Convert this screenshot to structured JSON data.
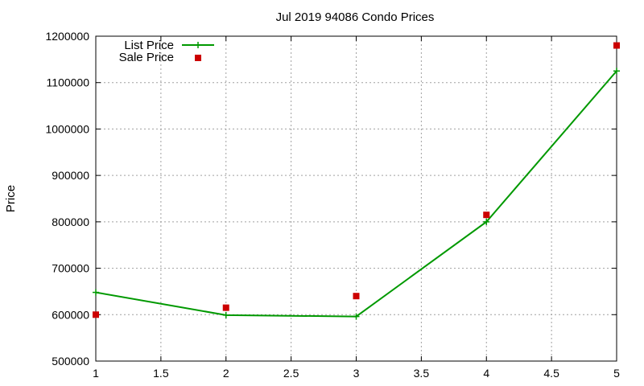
{
  "chart_data": {
    "type": "line",
    "title": "Jul 2019 94086 Condo Prices",
    "xlabel": "",
    "ylabel": "Price",
    "xlim": [
      1,
      5
    ],
    "ylim": [
      500000,
      1200000
    ],
    "x_ticks": [
      "1",
      "1.5",
      "2",
      "2.5",
      "3",
      "3.5",
      "4",
      "4.5",
      "5"
    ],
    "y_ticks": [
      "500000",
      "600000",
      "700000",
      "800000",
      "900000",
      "1000000",
      "1100000",
      "1200000"
    ],
    "grid": true,
    "legend_position": "top-left",
    "series": [
      {
        "name": "List Price",
        "style": "line-with-plus-markers",
        "color": "#009900",
        "x": [
          1,
          2,
          3,
          4,
          5
        ],
        "values": [
          648000,
          599000,
          596000,
          800000,
          1125000
        ]
      },
      {
        "name": "Sale Price",
        "style": "square-points",
        "color": "#cc0000",
        "x": [
          1,
          2,
          3,
          4,
          5
        ],
        "values": [
          600000,
          615000,
          640000,
          815000,
          1180000
        ]
      }
    ]
  }
}
